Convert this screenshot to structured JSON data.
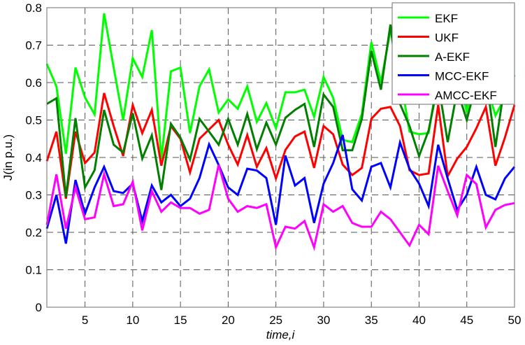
{
  "chart_data": {
    "type": "line",
    "title": "",
    "xlabel": "time,i",
    "ylabel": "J(in p.u.)",
    "xlim": [
      1,
      50
    ],
    "ylim": [
      0,
      0.8
    ],
    "xticks": [
      5,
      10,
      15,
      20,
      25,
      30,
      35,
      40,
      45,
      50
    ],
    "yticks": [
      0,
      0.1,
      0.2,
      0.3,
      0.4,
      0.5,
      0.6,
      0.7,
      0.8
    ],
    "xtick_labels": [
      "5",
      "10",
      "15",
      "20",
      "25",
      "30",
      "35",
      "40",
      "45",
      "50"
    ],
    "ytick_labels": [
      "0",
      "0.1",
      "0.2",
      "0.3",
      "0.4",
      "0.5",
      "0.6",
      "0.7",
      "0.8"
    ],
    "grid": true,
    "legend_position": "upper right",
    "x": [
      1,
      2,
      3,
      4,
      5,
      6,
      7,
      8,
      9,
      10,
      11,
      12,
      13,
      14,
      15,
      16,
      17,
      18,
      19,
      20,
      21,
      22,
      23,
      24,
      25,
      26,
      27,
      28,
      29,
      30,
      31,
      32,
      33,
      34,
      35,
      36,
      37,
      38,
      39,
      40,
      41,
      42,
      43,
      44,
      45,
      46,
      47,
      48,
      49,
      50
    ],
    "series": [
      {
        "name": "EKF",
        "color": "#00ff00",
        "values": [
          0.65,
          0.59,
          0.41,
          0.64,
          0.56,
          0.515,
          0.785,
          0.64,
          0.5,
          0.665,
          0.615,
          0.74,
          0.395,
          0.63,
          0.64,
          0.465,
          0.59,
          0.635,
          0.52,
          0.555,
          0.53,
          0.59,
          0.495,
          0.545,
          0.478,
          0.574,
          0.574,
          0.581,
          0.509,
          0.615,
          0.559,
          0.447,
          0.441,
          0.516,
          0.708,
          0.6,
          0.74,
          0.62,
          0.469,
          0.462,
          0.465,
          0.62,
          0.56,
          0.64,
          0.52,
          0.65,
          0.6,
          0.512,
          0.56,
          0.62
        ]
      },
      {
        "name": "UKF",
        "color": "#ff0000",
        "values": [
          0.39,
          0.469,
          0.29,
          0.469,
          0.385,
          0.413,
          0.572,
          0.484,
          0.404,
          0.54,
          0.465,
          0.527,
          0.378,
          0.484,
          0.45,
          0.36,
          0.45,
          0.475,
          0.5,
          0.434,
          0.381,
          0.46,
          0.375,
          0.425,
          0.344,
          0.42,
          0.456,
          0.469,
          0.372,
          0.484,
          0.462,
          0.381,
          0.353,
          0.372,
          0.503,
          0.53,
          0.535,
          0.484,
          0.366,
          0.353,
          0.357,
          0.54,
          0.35,
          0.397,
          0.428,
          0.478,
          0.535,
          0.378,
          0.453,
          0.54
        ]
      },
      {
        "name": "A-EKF",
        "color": "#007f00",
        "values": [
          0.543,
          0.558,
          0.294,
          0.505,
          0.32,
          0.366,
          0.527,
          0.434,
          0.413,
          0.518,
          0.397,
          0.459,
          0.313,
          0.49,
          0.453,
          0.394,
          0.503,
          0.469,
          0.434,
          0.503,
          0.434,
          0.516,
          0.422,
          0.493,
          0.434,
          0.506,
          0.527,
          0.543,
          0.428,
          0.568,
          0.535,
          0.419,
          0.419,
          0.503,
          0.684,
          0.581,
          0.755,
          0.543,
          0.484,
          0.404,
          0.472,
          0.6,
          0.441,
          0.58,
          0.5,
          0.6,
          0.62,
          0.428,
          0.6,
          0.62
        ]
      },
      {
        "name": "MCC-EKF",
        "color": "#0000ff",
        "values": [
          0.21,
          0.3,
          0.17,
          0.34,
          0.25,
          0.32,
          0.375,
          0.31,
          0.305,
          0.33,
          0.23,
          0.325,
          0.28,
          0.3,
          0.27,
          0.29,
          0.345,
          0.435,
          0.38,
          0.32,
          0.3,
          0.37,
          0.365,
          0.345,
          0.22,
          0.405,
          0.325,
          0.345,
          0.225,
          0.33,
          0.385,
          0.46,
          0.315,
          0.285,
          0.375,
          0.385,
          0.32,
          0.44,
          0.37,
          0.33,
          0.27,
          0.434,
          0.344,
          0.26,
          0.3,
          0.375,
          0.3,
          0.288,
          0.344,
          0.375
        ]
      },
      {
        "name": "AMCC-EKF",
        "color": "#ff00ff",
        "values": [
          0.22,
          0.355,
          0.21,
          0.32,
          0.235,
          0.24,
          0.355,
          0.27,
          0.275,
          0.335,
          0.205,
          0.31,
          0.255,
          0.28,
          0.265,
          0.265,
          0.25,
          0.26,
          0.38,
          0.29,
          0.255,
          0.27,
          0.265,
          0.275,
          0.16,
          0.215,
          0.21,
          0.23,
          0.16,
          0.275,
          0.255,
          0.27,
          0.225,
          0.215,
          0.215,
          0.255,
          0.235,
          0.2,
          0.165,
          0.22,
          0.195,
          0.378,
          0.31,
          0.245,
          0.353,
          0.329,
          0.213,
          0.26,
          0.273,
          0.278
        ]
      }
    ]
  }
}
